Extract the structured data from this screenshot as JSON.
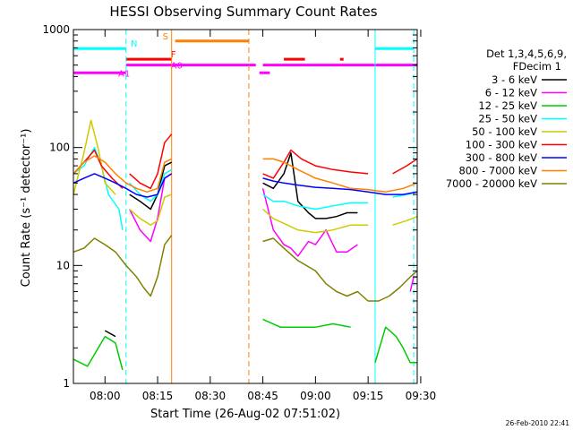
{
  "chart_data": {
    "type": "line",
    "title": "HESSI Observing Summary Count Rates",
    "xlabel": "Start Time (26-Aug-02 07:51:02)",
    "ylabel": "Count Rate (s⁻¹ detector⁻¹)",
    "yscale": "log",
    "ylim": [
      1,
      1000
    ],
    "xlim": [
      "07:51",
      "09:29"
    ],
    "x_ticks": [
      "08:00",
      "08:15",
      "08:30",
      "08:45",
      "09:00",
      "09:15",
      "09:30"
    ],
    "y_ticks": [
      "1",
      "10",
      "100",
      "1000"
    ],
    "footer_date": "26-Feb-2010 22:41",
    "legend": {
      "placement": "right",
      "header_line1": "Det 1,3,4,5,6,9,",
      "header_line2": "FDecim 1",
      "entries": [
        {
          "label": "3 - 6 keV",
          "color": "#000000"
        },
        {
          "label": "6 - 12 keV",
          "color": "#ff00ff"
        },
        {
          "label": "12 - 25 keV",
          "color": "#00cc00"
        },
        {
          "label": "25 - 50 keV",
          "color": "#00ffff"
        },
        {
          "label": "50 - 100 keV",
          "color": "#cccc00"
        },
        {
          "label": "100 - 300 keV",
          "color": "#ff0000"
        },
        {
          "label": "300 - 800 keV",
          "color": "#0000ff"
        },
        {
          "label": "800 - 7000 keV",
          "color": "#ff8000"
        },
        {
          "label": "7000 - 20000 keV",
          "color": "#808000"
        }
      ]
    },
    "flag_labels": {
      "N": "N",
      "S": "S",
      "F": "F",
      "A0": "A0",
      "A1": "A1"
    },
    "flags": [
      {
        "name": "N",
        "color": "#00ffff",
        "level": 690,
        "segments": [
          [
            "07:51",
            "08:06"
          ],
          [
            "09:17",
            "09:28"
          ]
        ]
      },
      {
        "name": "S",
        "color": "#ff8000",
        "level": 800,
        "segments": [
          [
            "08:20",
            "08:41"
          ]
        ]
      },
      {
        "name": "F",
        "color": "#ff0000",
        "level": 560,
        "segments": [
          [
            "08:06",
            "08:19"
          ],
          [
            "08:51",
            "08:57"
          ],
          [
            "09:07",
            "09:08"
          ]
        ]
      },
      {
        "name": "A0",
        "color": "#ff00ff",
        "level": 500,
        "segments": [
          [
            "08:06",
            "08:43"
          ],
          [
            "08:45",
            "09:29"
          ]
        ]
      },
      {
        "name": "A1",
        "color": "#ff00ff",
        "level": 430,
        "segments": [
          [
            "07:51",
            "08:06"
          ],
          [
            "08:44",
            "08:47"
          ]
        ]
      }
    ],
    "event_lines": [
      {
        "time": "08:06",
        "color": "#00ffff",
        "style": "dashed"
      },
      {
        "time": "08:19",
        "color": "#ff8000",
        "style": "solid"
      },
      {
        "time": "08:41",
        "color": "#ff8000",
        "style": "dashed"
      },
      {
        "time": "09:17",
        "color": "#00ffff",
        "style": "solid"
      },
      {
        "time": "09:28",
        "color": "#00ffff",
        "style": "dashed"
      }
    ],
    "series": [
      {
        "name": "3 - 6 keV",
        "color": "#000000",
        "points": [
          [
            "07:51",
            null
          ],
          [
            "08:00",
            2.8
          ],
          [
            "08:03",
            2.5
          ],
          [
            "08:06",
            null
          ],
          [
            "08:07",
            40
          ],
          [
            "08:10",
            35
          ],
          [
            "08:13",
            30
          ],
          [
            "08:15",
            40
          ],
          [
            "08:17",
            70
          ],
          [
            "08:19",
            75
          ],
          [
            "08:44",
            null
          ],
          [
            "08:45",
            50
          ],
          [
            "08:48",
            45
          ],
          [
            "08:51",
            60
          ],
          [
            "08:53",
            90
          ],
          [
            "08:55",
            35
          ],
          [
            "08:58",
            28
          ],
          [
            "09:00",
            25
          ],
          [
            "09:03",
            25
          ],
          [
            "09:06",
            26
          ],
          [
            "09:09",
            28
          ],
          [
            "09:12",
            28
          ],
          [
            "09:16",
            null
          ]
        ]
      },
      {
        "name": "6 - 12 keV",
        "color": "#ff00ff",
        "points": [
          [
            "07:51",
            null
          ],
          [
            "08:06",
            null
          ],
          [
            "08:07",
            30
          ],
          [
            "08:10",
            20
          ],
          [
            "08:13",
            16
          ],
          [
            "08:15",
            25
          ],
          [
            "08:17",
            55
          ],
          [
            "08:19",
            60
          ],
          [
            "08:44",
            null
          ],
          [
            "08:45",
            45
          ],
          [
            "08:48",
            20
          ],
          [
            "08:51",
            15
          ],
          [
            "08:53",
            14
          ],
          [
            "08:55",
            12
          ],
          [
            "08:58",
            16
          ],
          [
            "09:00",
            15
          ],
          [
            "09:03",
            20
          ],
          [
            "09:06",
            13
          ],
          [
            "09:09",
            13
          ],
          [
            "09:12",
            15
          ],
          [
            "09:16",
            null
          ],
          [
            "09:27",
            6
          ],
          [
            "09:28",
            8
          ],
          [
            "09:29",
            8
          ]
        ]
      },
      {
        "name": "12 - 25 keV",
        "color": "#00cc00",
        "points": [
          [
            "07:51",
            1.6
          ],
          [
            "07:55",
            1.4
          ],
          [
            "08:00",
            2.5
          ],
          [
            "08:03",
            2.2
          ],
          [
            "08:05",
            1.3
          ],
          [
            "08:06",
            null
          ],
          [
            "08:07",
            null
          ],
          [
            "08:19",
            null
          ],
          [
            "08:44",
            null
          ],
          [
            "08:45",
            3.5
          ],
          [
            "08:50",
            3.0
          ],
          [
            "08:55",
            3.0
          ],
          [
            "09:00",
            3.0
          ],
          [
            "09:05",
            3.2
          ],
          [
            "09:10",
            3.0
          ],
          [
            "09:16",
            null
          ],
          [
            "09:17",
            1.5
          ],
          [
            "09:20",
            3
          ],
          [
            "09:23",
            2.5
          ],
          [
            "09:25",
            2
          ],
          [
            "09:27",
            1.5
          ],
          [
            "09:29",
            1.5
          ]
        ]
      },
      {
        "name": "25 - 50 keV",
        "color": "#00ffff",
        "points": [
          [
            "07:51",
            60
          ],
          [
            "07:54",
            70
          ],
          [
            "07:57",
            100
          ],
          [
            "07:59",
            70
          ],
          [
            "08:01",
            40
          ],
          [
            "08:04",
            30
          ],
          [
            "08:05",
            20
          ],
          [
            "08:06",
            null
          ],
          [
            "08:07",
            50
          ],
          [
            "08:10",
            40
          ],
          [
            "08:13",
            35
          ],
          [
            "08:15",
            40
          ],
          [
            "08:17",
            60
          ],
          [
            "08:19",
            65
          ],
          [
            "08:44",
            null
          ],
          [
            "08:45",
            40
          ],
          [
            "08:48",
            35
          ],
          [
            "08:51",
            35
          ],
          [
            "08:55",
            32
          ],
          [
            "09:00",
            30
          ],
          [
            "09:05",
            32
          ],
          [
            "09:10",
            34
          ],
          [
            "09:15",
            34
          ],
          [
            "09:16",
            null
          ],
          [
            "09:22",
            38
          ],
          [
            "09:26",
            40
          ],
          [
            "09:29",
            42
          ]
        ]
      },
      {
        "name": "50 - 100 keV",
        "color": "#cccc00",
        "points": [
          [
            "07:51",
            40
          ],
          [
            "07:54",
            90
          ],
          [
            "07:56",
            170
          ],
          [
            "07:58",
            100
          ],
          [
            "08:00",
            50
          ],
          [
            "08:03",
            40
          ],
          [
            "08:06",
            null
          ],
          [
            "08:07",
            30
          ],
          [
            "08:10",
            25
          ],
          [
            "08:13",
            22
          ],
          [
            "08:15",
            24
          ],
          [
            "08:17",
            38
          ],
          [
            "08:19",
            40
          ],
          [
            "08:44",
            null
          ],
          [
            "08:45",
            30
          ],
          [
            "08:48",
            25
          ],
          [
            "08:52",
            22
          ],
          [
            "08:55",
            20
          ],
          [
            "09:00",
            19
          ],
          [
            "09:05",
            20
          ],
          [
            "09:10",
            22
          ],
          [
            "09:15",
            22
          ],
          [
            "09:16",
            null
          ],
          [
            "09:22",
            22
          ],
          [
            "09:26",
            24
          ],
          [
            "09:29",
            26
          ]
        ]
      },
      {
        "name": "100 - 300 keV",
        "color": "#ff0000",
        "points": [
          [
            "07:51",
            60
          ],
          [
            "07:54",
            75
          ],
          [
            "07:57",
            95
          ],
          [
            "07:59",
            70
          ],
          [
            "08:02",
            55
          ],
          [
            "08:05",
            45
          ],
          [
            "08:06",
            null
          ],
          [
            "08:07",
            60
          ],
          [
            "08:10",
            50
          ],
          [
            "08:13",
            45
          ],
          [
            "08:15",
            60
          ],
          [
            "08:17",
            110
          ],
          [
            "08:19",
            130
          ],
          [
            "08:44",
            null
          ],
          [
            "08:45",
            60
          ],
          [
            "08:48",
            55
          ],
          [
            "08:51",
            75
          ],
          [
            "08:53",
            95
          ],
          [
            "08:56",
            80
          ],
          [
            "09:00",
            70
          ],
          [
            "09:05",
            65
          ],
          [
            "09:10",
            62
          ],
          [
            "09:15",
            60
          ],
          [
            "09:16",
            null
          ],
          [
            "09:22",
            60
          ],
          [
            "09:26",
            70
          ],
          [
            "09:29",
            80
          ]
        ]
      },
      {
        "name": "300 - 800 keV",
        "color": "#0000ff",
        "points": [
          [
            "07:51",
            50
          ],
          [
            "07:54",
            55
          ],
          [
            "07:57",
            60
          ],
          [
            "08:00",
            55
          ],
          [
            "08:03",
            50
          ],
          [
            "08:06",
            45
          ],
          [
            "08:09",
            40
          ],
          [
            "08:12",
            38
          ],
          [
            "08:15",
            40
          ],
          [
            "08:17",
            55
          ],
          [
            "08:19",
            60
          ],
          [
            "08:44",
            null
          ],
          [
            "08:45",
            55
          ],
          [
            "08:48",
            52
          ],
          [
            "08:51",
            50
          ],
          [
            "08:55",
            48
          ],
          [
            "09:00",
            46
          ],
          [
            "09:05",
            45
          ],
          [
            "09:10",
            44
          ],
          [
            "09:15",
            42
          ],
          [
            "09:20",
            40
          ],
          [
            "09:25",
            40
          ],
          [
            "09:29",
            42
          ]
        ]
      },
      {
        "name": "800 - 7000 keV",
        "color": "#ff8000",
        "points": [
          [
            "07:51",
            60
          ],
          [
            "07:54",
            75
          ],
          [
            "07:57",
            85
          ],
          [
            "08:00",
            75
          ],
          [
            "08:03",
            60
          ],
          [
            "08:06",
            50
          ],
          [
            "08:09",
            45
          ],
          [
            "08:12",
            42
          ],
          [
            "08:15",
            45
          ],
          [
            "08:17",
            75
          ],
          [
            "08:19",
            80
          ],
          [
            "08:44",
            null
          ],
          [
            "08:45",
            80
          ],
          [
            "08:48",
            80
          ],
          [
            "08:51",
            75
          ],
          [
            "08:55",
            65
          ],
          [
            "09:00",
            55
          ],
          [
            "09:05",
            50
          ],
          [
            "09:10",
            45
          ],
          [
            "09:15",
            44
          ],
          [
            "09:20",
            42
          ],
          [
            "09:25",
            45
          ],
          [
            "09:29",
            50
          ]
        ]
      },
      {
        "name": "7000 - 20000 keV",
        "color": "#808000",
        "points": [
          [
            "07:51",
            13
          ],
          [
            "07:54",
            14
          ],
          [
            "07:57",
            17
          ],
          [
            "08:00",
            15
          ],
          [
            "08:03",
            13
          ],
          [
            "08:06",
            10
          ],
          [
            "08:09",
            8
          ],
          [
            "08:11",
            6.5
          ],
          [
            "08:13",
            5.5
          ],
          [
            "08:15",
            8
          ],
          [
            "08:17",
            15
          ],
          [
            "08:19",
            18
          ],
          [
            "08:44",
            null
          ],
          [
            "08:45",
            16
          ],
          [
            "08:48",
            17
          ],
          [
            "08:51",
            14
          ],
          [
            "08:55",
            11
          ],
          [
            "09:00",
            9
          ],
          [
            "09:03",
            7
          ],
          [
            "09:06",
            6
          ],
          [
            "09:09",
            5.5
          ],
          [
            "09:12",
            6
          ],
          [
            "09:15",
            5
          ],
          [
            "09:18",
            5
          ],
          [
            "09:21",
            5.5
          ],
          [
            "09:24",
            6.5
          ],
          [
            "09:27",
            8
          ],
          [
            "09:29",
            9
          ]
        ]
      }
    ]
  }
}
